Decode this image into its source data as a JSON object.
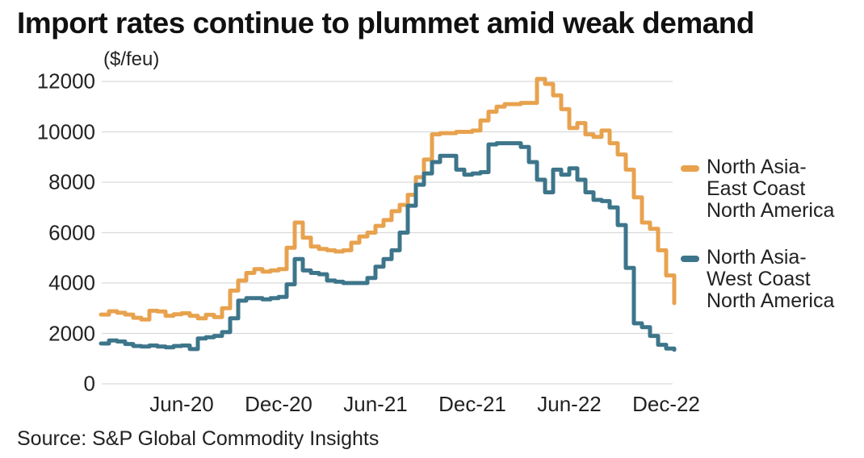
{
  "title": "Import rates continue to plummet amid weak demand",
  "units_label": "($/feu)",
  "source_note": "Source: S&P Global Commodity Insights",
  "colors": {
    "east_series": "#E8A24E",
    "west_series": "#3D758B",
    "gridline": "#DADADA",
    "title_text": "#111111",
    "axis_text": "#222222"
  },
  "y_axis": {
    "ticks": [
      12000,
      10000,
      8000,
      6000,
      4000,
      2000,
      0
    ]
  },
  "x_axis": {
    "tick_labels": [
      "Jun-20",
      "Dec-20",
      "Jun-21",
      "Dec-21",
      "Jun-22",
      "Dec-22"
    ]
  },
  "legend": [
    {
      "series": "east",
      "label_lines": "North Asia-\nEast Coast\nNorth America",
      "color": "#E8A24E"
    },
    {
      "series": "west",
      "label_lines": "North Asia-\nWest Coast\nNorth America",
      "color": "#3D758B"
    }
  ],
  "chart_data": {
    "type": "line",
    "line_style": "step-after",
    "title": "Import rates continue to plummet amid weak demand",
    "xlabel": "",
    "ylabel": "($/feu)",
    "ylim": [
      0,
      12000
    ],
    "grid": "horizontal",
    "legend_position": "right",
    "x_start": "Jan-2020",
    "x_step_months": 0.5,
    "x_tick_labels": [
      "Jun-20",
      "Dec-20",
      "Jun-21",
      "Dec-21",
      "Jun-22",
      "Dec-22"
    ],
    "x_tick_month_offsets": [
      5,
      11,
      17,
      23,
      29,
      35
    ],
    "series": [
      {
        "name": "North Asia-East Coast North America",
        "color": "#E8A24E",
        "values": [
          2750,
          2880,
          2820,
          2750,
          2620,
          2550,
          2900,
          2870,
          2700,
          2760,
          2800,
          2700,
          2600,
          2740,
          2650,
          3000,
          3700,
          4100,
          4400,
          4550,
          4450,
          4500,
          4550,
          5400,
          6400,
          5800,
          5450,
          5350,
          5300,
          5250,
          5300,
          5600,
          5850,
          6000,
          6270,
          6500,
          6850,
          7100,
          7500,
          8200,
          8900,
          9900,
          9950,
          9950,
          10000,
          10000,
          10050,
          10450,
          10800,
          11000,
          11100,
          11100,
          11150,
          11150,
          12100,
          11900,
          11450,
          10900,
          10150,
          10350,
          9900,
          9800,
          10050,
          9550,
          9100,
          8500,
          7400,
          6400,
          6150,
          5300,
          4300,
          3200
        ]
      },
      {
        "name": "North Asia-West Coast North America",
        "color": "#3D758B",
        "values": [
          1600,
          1720,
          1680,
          1580,
          1500,
          1480,
          1520,
          1480,
          1450,
          1500,
          1520,
          1380,
          1800,
          1850,
          1900,
          2050,
          2600,
          3300,
          3400,
          3400,
          3350,
          3400,
          3450,
          3950,
          4950,
          4500,
          4400,
          4350,
          4100,
          4050,
          4000,
          4000,
          4000,
          4200,
          4650,
          4950,
          5300,
          6000,
          7070,
          7900,
          8350,
          8800,
          9050,
          9050,
          8500,
          8300,
          8350,
          8400,
          9500,
          9550,
          9550,
          9550,
          9400,
          8800,
          8100,
          7600,
          8500,
          8300,
          8550,
          8100,
          7600,
          7300,
          7250,
          7000,
          6300,
          4600,
          2400,
          2250,
          1900,
          1550,
          1400,
          1350
        ]
      }
    ]
  }
}
